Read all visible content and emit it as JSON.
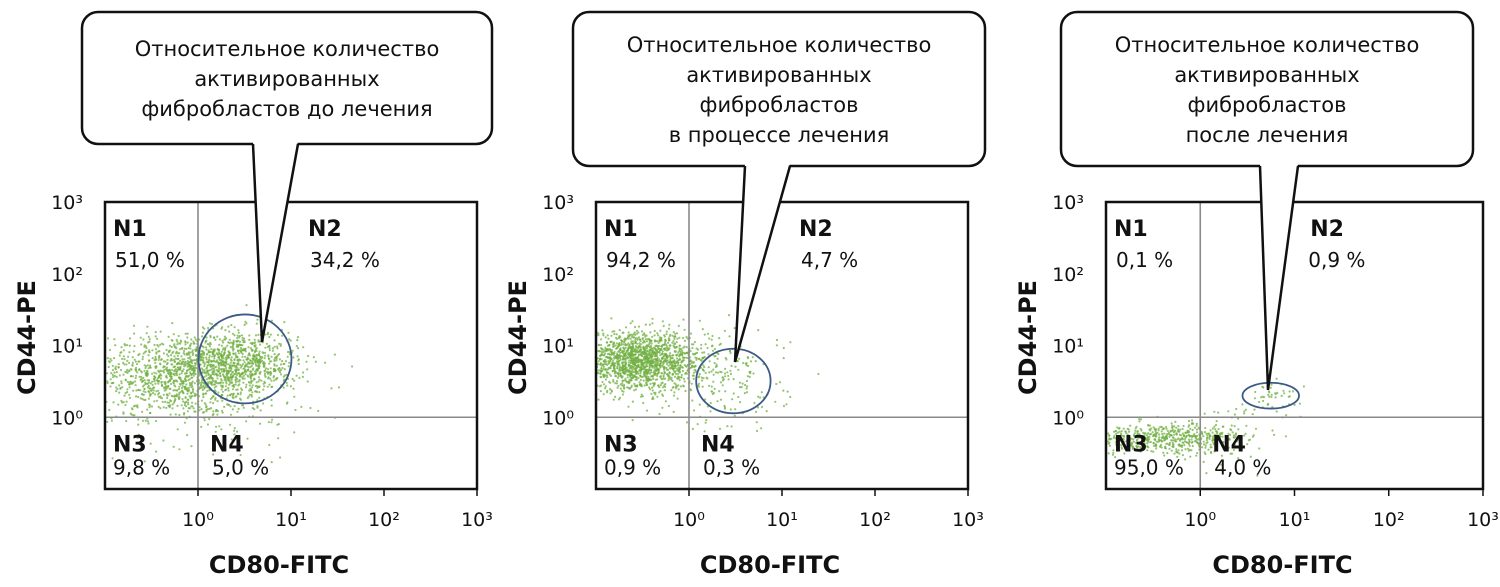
{
  "colors": {
    "points": "#72b043",
    "gate": "#3b5a85",
    "frame": "#111111",
    "quadrant_lines": "#8a8a8a",
    "callout_fill": "#ffffff"
  },
  "chart_data": [
    {
      "type": "scatter",
      "scale": "log",
      "xlabel": "CD80-FITC",
      "ylabel": "CD44-PE",
      "x_ticks": [
        "10⁰",
        "10¹",
        "10²",
        "10³"
      ],
      "y_ticks": [
        "10⁰",
        "10¹",
        "10²",
        "10³"
      ],
      "xlim": [
        0.1,
        1000
      ],
      "ylim": [
        0.1,
        1000
      ],
      "quadrant_gate": {
        "x": 1,
        "y": 1
      },
      "callout": [
        "Относительное количество",
        "активированных",
        "фибробластов до лечения"
      ],
      "quadrants": [
        {
          "label": "N1",
          "value": "51,0 %"
        },
        {
          "label": "N2",
          "value": "34,2 %"
        },
        {
          "label": "N3",
          "value": "9,8 %"
        },
        {
          "label": "N4",
          "value": "5,0 %"
        }
      ],
      "clusters": [
        {
          "x": 0.6,
          "y": 4,
          "sx": 0.45,
          "sy": 0.28,
          "n": 1000
        },
        {
          "x": 2.8,
          "y": 6,
          "sx": 0.32,
          "sy": 0.22,
          "n": 700
        },
        {
          "x": 1.2,
          "y": 2,
          "sx": 0.55,
          "sy": 0.35,
          "n": 250
        }
      ],
      "gate_ellipse": {
        "x": 3.2,
        "y": 6.5,
        "rx_decades": 0.5,
        "ry_decades": 0.62
      }
    },
    {
      "type": "scatter",
      "scale": "log",
      "xlabel": "CD80-FITC",
      "ylabel": "CD44-PE",
      "x_ticks": [
        "10⁰",
        "10¹",
        "10²",
        "10³"
      ],
      "y_ticks": [
        "10⁰",
        "10¹",
        "10²",
        "10³"
      ],
      "xlim": [
        0.1,
        1000
      ],
      "ylim": [
        0.1,
        1000
      ],
      "quadrant_gate": {
        "x": 1,
        "y": 1
      },
      "callout": [
        "Относительное количество",
        "активированных",
        "фибробластов",
        "в процессе лечения"
      ],
      "quadrants": [
        {
          "label": "N1",
          "value": "94,2 %"
        },
        {
          "label": "N2",
          "value": "4,7 %"
        },
        {
          "label": "N3",
          "value": "0,9 %"
        },
        {
          "label": "N4",
          "value": "0,3 %"
        }
      ],
      "clusters": [
        {
          "x": 0.3,
          "y": 6,
          "sx": 0.35,
          "sy": 0.2,
          "n": 1700
        },
        {
          "x": 3.0,
          "y": 3,
          "sx": 0.3,
          "sy": 0.35,
          "n": 150
        }
      ],
      "gate_ellipse": {
        "x": 3.0,
        "y": 3.2,
        "rx_decades": 0.4,
        "ry_decades": 0.45
      }
    },
    {
      "type": "scatter",
      "scale": "log",
      "xlabel": "CD80-FITC",
      "ylabel": "CD44-PE",
      "x_ticks": [
        "10⁰",
        "10¹",
        "10²",
        "10³"
      ],
      "y_ticks": [
        "10⁰",
        "10¹",
        "10²",
        "10³"
      ],
      "xlim": [
        0.1,
        1000
      ],
      "ylim": [
        0.1,
        1000
      ],
      "quadrant_gate": {
        "x": 1,
        "y": 1
      },
      "callout": [
        "Относительное количество",
        "активированных",
        "фибробластов",
        "после лечения"
      ],
      "quadrants": [
        {
          "label": "N1",
          "value": "0,1 %"
        },
        {
          "label": "N2",
          "value": "0,9 %"
        },
        {
          "label": "N3",
          "value": "95,0 %"
        },
        {
          "label": "N4",
          "value": "4,0 %"
        }
      ],
      "clusters": [
        {
          "x": 0.4,
          "y": 0.5,
          "sx": 0.4,
          "sy": 0.1,
          "n": 500
        },
        {
          "x": 1.8,
          "y": 0.6,
          "sx": 0.22,
          "sy": 0.2,
          "n": 90
        },
        {
          "x": 6.0,
          "y": 1.9,
          "sx": 0.15,
          "sy": 0.1,
          "n": 45
        }
      ],
      "gate_ellipse": {
        "x": 5.6,
        "y": 2.0,
        "rx_decades": 0.3,
        "ry_decades": 0.18
      }
    }
  ]
}
